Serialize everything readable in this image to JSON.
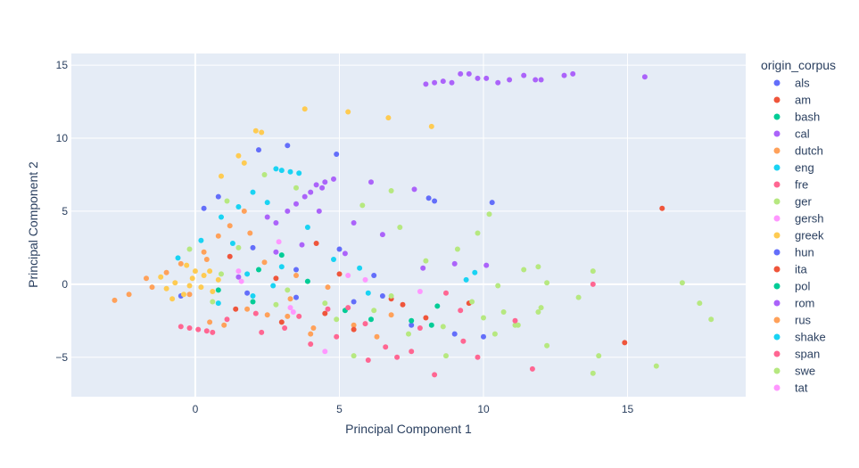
{
  "chart_data": {
    "type": "scatter",
    "title": "",
    "xlabel": "Principal Component 1",
    "ylabel": "Principal Component 2",
    "xlim": [
      -4.3,
      19.1
    ],
    "ylim": [
      -7.7,
      15.8
    ],
    "xticks": [
      0,
      5,
      10,
      15
    ],
    "yticks": [
      -5,
      0,
      5,
      10,
      15
    ],
    "grid": true,
    "legend_title": "origin_corpus",
    "legend_position": "right",
    "series": [
      {
        "name": "als",
        "color": "#636efa",
        "points": [
          [
            3.2,
            9.5
          ],
          [
            4.9,
            8.9
          ],
          [
            10.3,
            5.6
          ],
          [
            10.0,
            -3.6
          ],
          [
            8.1,
            5.9
          ],
          [
            2.2,
            9.2
          ],
          [
            0.3,
            5.2
          ],
          [
            0.8,
            6.0
          ],
          [
            2.0,
            2.5
          ],
          [
            -0.5,
            -0.8
          ],
          [
            5.5,
            -1.2
          ],
          [
            7.5,
            -2.8
          ],
          [
            6.2,
            0.6
          ],
          [
            3.5,
            -0.9
          ]
        ]
      },
      {
        "name": "am",
        "color": "#EF553B",
        "points": [
          [
            16.2,
            5.2
          ],
          [
            14.9,
            -4.0
          ],
          [
            4.5,
            -2.0
          ],
          [
            6.8,
            -1.0
          ],
          [
            2.8,
            0.4
          ],
          [
            1.4,
            -1.7
          ],
          [
            8.0,
            -2.3
          ],
          [
            9.5,
            -1.3
          ],
          [
            5.0,
            0.7
          ]
        ]
      },
      {
        "name": "bash",
        "color": "#00cc96",
        "points": [
          [
            7.5,
            -2.5
          ],
          [
            3.0,
            2.0
          ],
          [
            0.8,
            -0.4
          ],
          [
            5.2,
            -1.8
          ],
          [
            8.2,
            -2.8
          ],
          [
            2.0,
            -1.2
          ]
        ]
      },
      {
        "name": "cal",
        "color": "#ab63fa",
        "points": [
          [
            8.0,
            13.7
          ],
          [
            8.3,
            13.8
          ],
          [
            8.6,
            13.9
          ],
          [
            8.9,
            13.8
          ],
          [
            9.2,
            14.4
          ],
          [
            9.5,
            14.4
          ],
          [
            9.8,
            14.1
          ],
          [
            10.1,
            14.1
          ],
          [
            10.5,
            13.8
          ],
          [
            10.9,
            14.0
          ],
          [
            11.4,
            14.3
          ],
          [
            11.8,
            14.0
          ],
          [
            12.0,
            14.0
          ],
          [
            12.8,
            14.3
          ],
          [
            13.1,
            14.4
          ],
          [
            15.6,
            14.2
          ],
          [
            4.5,
            7.0
          ],
          [
            4.8,
            7.2
          ],
          [
            4.2,
            6.8
          ],
          [
            3.8,
            6.0
          ],
          [
            3.2,
            5.0
          ],
          [
            2.8,
            4.2
          ],
          [
            3.5,
            5.5
          ],
          [
            4.0,
            6.3
          ],
          [
            4.4,
            6.6
          ],
          [
            6.1,
            7.0
          ],
          [
            7.6,
            6.5
          ],
          [
            5.5,
            4.2
          ],
          [
            2.8,
            2.2
          ],
          [
            1.5,
            0.5
          ]
        ]
      },
      {
        "name": "dutch",
        "color": "#FFA15A",
        "points": [
          [
            -2.8,
            -1.1
          ],
          [
            -1.5,
            -0.2
          ],
          [
            -1.0,
            0.8
          ],
          [
            -0.5,
            1.4
          ],
          [
            0.3,
            2.2
          ],
          [
            0.8,
            3.3
          ],
          [
            1.2,
            4.0
          ],
          [
            1.7,
            5.0
          ],
          [
            -0.2,
            -0.7
          ],
          [
            0.5,
            -2.6
          ],
          [
            1.8,
            -1.7
          ],
          [
            3.2,
            -2.2
          ],
          [
            4.0,
            -3.4
          ],
          [
            5.5,
            -2.8
          ],
          [
            6.8,
            -2.1
          ],
          [
            2.4,
            1.5
          ],
          [
            3.5,
            0.6
          ],
          [
            4.6,
            -0.2
          ]
        ]
      },
      {
        "name": "eng",
        "color": "#19d3f3",
        "points": [
          [
            2.8,
            7.9
          ],
          [
            3.0,
            7.8
          ],
          [
            3.3,
            7.7
          ],
          [
            3.6,
            7.6
          ],
          [
            2.5,
            5.6
          ],
          [
            2.0,
            6.3
          ],
          [
            1.5,
            5.3
          ],
          [
            0.9,
            4.6
          ],
          [
            0.2,
            3.0
          ],
          [
            -0.6,
            1.8
          ],
          [
            1.8,
            0.7
          ],
          [
            3.0,
            1.2
          ],
          [
            4.8,
            1.7
          ],
          [
            9.4,
            0.3
          ],
          [
            6.0,
            -0.6
          ],
          [
            2.0,
            -0.8
          ]
        ]
      },
      {
        "name": "fre",
        "color": "#FF6692",
        "points": [
          [
            -0.5,
            -2.9
          ],
          [
            -0.2,
            -3.0
          ],
          [
            0.1,
            -3.1
          ],
          [
            0.4,
            -3.2
          ],
          [
            0.6,
            -3.3
          ],
          [
            4.9,
            -3.6
          ],
          [
            6.0,
            -5.2
          ],
          [
            7.0,
            -5.0
          ],
          [
            8.3,
            -6.2
          ],
          [
            9.8,
            -5.0
          ],
          [
            11.7,
            -5.8
          ],
          [
            13.8,
            0.0
          ],
          [
            3.6,
            -2.2
          ],
          [
            5.3,
            -1.6
          ],
          [
            6.6,
            -4.3
          ],
          [
            7.8,
            -3.0
          ],
          [
            9.2,
            -1.8
          ],
          [
            2.3,
            -3.3
          ],
          [
            4.0,
            -4.1
          ],
          [
            1.1,
            -2.4
          ]
        ]
      },
      {
        "name": "ger",
        "color": "#B6E880",
        "points": [
          [
            17.9,
            -2.4
          ],
          [
            17.5,
            -1.3
          ],
          [
            16.9,
            0.1
          ],
          [
            16.0,
            -5.6
          ],
          [
            14.0,
            -4.9
          ],
          [
            13.8,
            -6.1
          ],
          [
            13.8,
            0.9
          ],
          [
            12.2,
            -4.2
          ],
          [
            12.0,
            -1.6
          ],
          [
            11.9,
            -1.9
          ],
          [
            11.1,
            -2.8
          ],
          [
            10.7,
            -1.9
          ],
          [
            10.4,
            -3.4
          ],
          [
            9.8,
            3.5
          ],
          [
            10.2,
            4.8
          ],
          [
            8.7,
            -4.9
          ],
          [
            6.8,
            6.4
          ],
          [
            5.5,
            -4.9
          ],
          [
            1.5,
            2.5
          ],
          [
            0.6,
            -1.2
          ],
          [
            3.2,
            -0.4
          ],
          [
            4.5,
            -1.3
          ],
          [
            6.2,
            -1.8
          ],
          [
            7.4,
            -3.4
          ],
          [
            8.6,
            -2.9
          ],
          [
            9.6,
            -1.2
          ]
        ]
      },
      {
        "name": "gersh",
        "color": "#FF97FF",
        "points": [
          [
            4.5,
            -4.6
          ],
          [
            7.8,
            -0.5
          ],
          [
            1.5,
            0.9
          ],
          [
            3.3,
            -1.6
          ],
          [
            5.9,
            0.3
          ]
        ]
      },
      {
        "name": "greek",
        "color": "#FECB52",
        "points": [
          [
            3.8,
            12.0
          ],
          [
            5.3,
            11.8
          ],
          [
            6.7,
            11.4
          ],
          [
            8.2,
            10.8
          ],
          [
            2.1,
            10.5
          ],
          [
            2.3,
            10.4
          ],
          [
            1.5,
            8.8
          ],
          [
            0.9,
            7.4
          ],
          [
            1.7,
            8.3
          ],
          [
            -0.3,
            1.3
          ],
          [
            -0.1,
            0.4
          ],
          [
            0.2,
            -0.2
          ],
          [
            0.5,
            0.9
          ],
          [
            -0.7,
            0.1
          ],
          [
            -1.0,
            -0.3
          ],
          [
            -0.4,
            -0.7
          ],
          [
            0.8,
            0.3
          ],
          [
            -0.2,
            -0.1
          ],
          [
            0.3,
            0.6
          ],
          [
            0.6,
            -0.5
          ],
          [
            -1.2,
            0.5
          ],
          [
            -0.8,
            -1.0
          ],
          [
            0.0,
            0.9
          ]
        ]
      },
      {
        "name": "hun",
        "color": "#636efa",
        "points": [
          [
            8.3,
            5.7
          ],
          [
            5.0,
            2.4
          ],
          [
            1.8,
            -0.6
          ],
          [
            3.5,
            1.0
          ],
          [
            6.5,
            -0.8
          ],
          [
            9.0,
            -3.4
          ]
        ]
      },
      {
        "name": "ita",
        "color": "#EF553B",
        "points": [
          [
            5.5,
            -3.1
          ],
          [
            3.0,
            -2.6
          ],
          [
            7.2,
            -1.4
          ],
          [
            1.2,
            1.9
          ],
          [
            4.2,
            2.8
          ]
        ]
      },
      {
        "name": "pol",
        "color": "#00cc96",
        "points": [
          [
            3.9,
            0.2
          ],
          [
            6.1,
            -2.4
          ],
          [
            2.2,
            1.0
          ],
          [
            8.4,
            -1.5
          ]
        ]
      },
      {
        "name": "rom",
        "color": "#ab63fa",
        "points": [
          [
            7.9,
            1.1
          ],
          [
            9.0,
            1.4
          ],
          [
            6.5,
            3.4
          ],
          [
            5.2,
            2.1
          ],
          [
            3.7,
            2.7
          ],
          [
            10.1,
            1.3
          ],
          [
            2.5,
            4.6
          ],
          [
            4.3,
            5.0
          ]
        ]
      },
      {
        "name": "rus",
        "color": "#FFA15A",
        "points": [
          [
            1.0,
            -2.8
          ],
          [
            2.5,
            -2.1
          ],
          [
            4.1,
            -3.0
          ],
          [
            6.3,
            -3.6
          ],
          [
            0.4,
            1.7
          ],
          [
            1.9,
            3.5
          ],
          [
            -1.7,
            0.4
          ],
          [
            -2.3,
            -0.7
          ],
          [
            3.3,
            -1.0
          ]
        ]
      },
      {
        "name": "shake",
        "color": "#19d3f3",
        "points": [
          [
            9.7,
            0.8
          ],
          [
            1.3,
            2.8
          ],
          [
            3.9,
            3.9
          ],
          [
            5.7,
            1.1
          ],
          [
            0.8,
            -1.3
          ],
          [
            2.7,
            -0.1
          ]
        ]
      },
      {
        "name": "span",
        "color": "#FF6692",
        "points": [
          [
            7.5,
            -4.6
          ],
          [
            9.3,
            -3.9
          ],
          [
            11.1,
            -2.5
          ],
          [
            5.9,
            -2.7
          ],
          [
            4.6,
            -1.7
          ],
          [
            3.1,
            -3.0
          ],
          [
            8.7,
            -0.6
          ],
          [
            2.1,
            -2.0
          ]
        ]
      },
      {
        "name": "swe",
        "color": "#B6E880",
        "points": [
          [
            11.4,
            1.0
          ],
          [
            11.9,
            1.2
          ],
          [
            12.2,
            0.1
          ],
          [
            13.3,
            -0.9
          ],
          [
            10.5,
            -0.1
          ],
          [
            9.1,
            2.4
          ],
          [
            7.1,
            3.9
          ],
          [
            5.8,
            5.4
          ],
          [
            3.5,
            6.6
          ],
          [
            2.4,
            7.5
          ],
          [
            1.1,
            5.7
          ],
          [
            -0.2,
            2.4
          ],
          [
            0.9,
            0.7
          ],
          [
            2.8,
            -1.4
          ],
          [
            4.9,
            -2.4
          ],
          [
            6.8,
            -0.8
          ],
          [
            8.0,
            1.6
          ],
          [
            10.0,
            -2.3
          ],
          [
            11.2,
            -2.8
          ]
        ]
      },
      {
        "name": "tat",
        "color": "#FF97FF",
        "points": [
          [
            3.4,
            -1.9
          ],
          [
            1.6,
            0.2
          ],
          [
            5.3,
            0.6
          ],
          [
            2.9,
            2.9
          ]
        ]
      }
    ]
  }
}
